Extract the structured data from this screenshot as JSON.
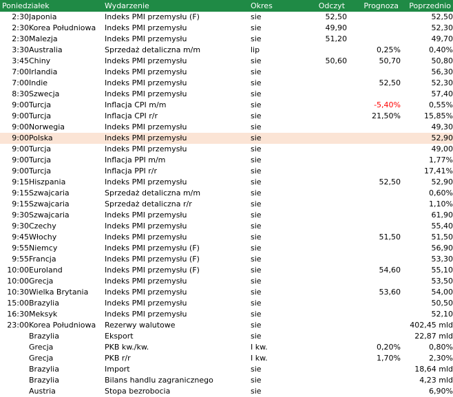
{
  "headers": {
    "day": "Poniedziałek",
    "event": "Wydarzenie",
    "period": "Okres",
    "actual": "Odczyt",
    "forecast": "Prognoza",
    "previous": "Poprzednio"
  },
  "rows": [
    {
      "time": "2:30",
      "country": "Japonia",
      "event": "Indeks PMI przemysłu (F)",
      "period": "sie",
      "actual": "52,50",
      "forecast": "",
      "previous": "52,50"
    },
    {
      "time": "2:30",
      "country": "Korea Południowa",
      "event": "Indeks PMI przemysłu",
      "period": "sie",
      "actual": "49,90",
      "forecast": "",
      "previous": "52,30"
    },
    {
      "time": "2:30",
      "country": "Malezja",
      "event": "Indeks PMI przemysłu",
      "period": "sie",
      "actual": "51,20",
      "forecast": "",
      "previous": "49,70"
    },
    {
      "time": "3:30",
      "country": "Australia",
      "event": "Sprzedaż detaliczna m/m",
      "period": "lip",
      "actual": "",
      "forecast": "0,25%",
      "previous": "0,40%"
    },
    {
      "time": "3:45",
      "country": "Chiny",
      "event": "Indeks PMI przemysłu",
      "period": "sie",
      "actual": "50,60",
      "forecast": "50,70",
      "previous": "50,80"
    },
    {
      "time": "7:00",
      "country": "Irlandia",
      "event": "Indeks PMI przemysłu",
      "period": "sie",
      "actual": "",
      "forecast": "",
      "previous": "56,30"
    },
    {
      "time": "7:00",
      "country": "Indie",
      "event": "Indeks PMI przemysłu",
      "period": "sie",
      "actual": "",
      "forecast": "52,50",
      "previous": "52,30"
    },
    {
      "time": "8:30",
      "country": "Szwecja",
      "event": "Indeks PMI przemysłu",
      "period": "sie",
      "actual": "",
      "forecast": "",
      "previous": "57,40"
    },
    {
      "time": "9:00",
      "country": "Turcja",
      "event": "Inflacja CPI m/m",
      "period": "sie",
      "actual": "",
      "forecast": "-5,40%",
      "previous": "0,55%",
      "neg": true
    },
    {
      "time": "9:00",
      "country": "Turcja",
      "event": "Inflacja CPI r/r",
      "period": "sie",
      "actual": "",
      "forecast": "21,50%",
      "previous": "15,85%"
    },
    {
      "time": "9:00",
      "country": "Norwegia",
      "event": "Indeks PMI przemysłu",
      "period": "sie",
      "actual": "",
      "forecast": "",
      "previous": "49,30"
    },
    {
      "time": "9:00",
      "country": "Polska",
      "event": "Indeks PMI przemysłu",
      "period": "sie",
      "actual": "",
      "forecast": "",
      "previous": "52,90",
      "highlight": true
    },
    {
      "time": "9:00",
      "country": "Turcja",
      "event": "Indeks PMI przemysłu",
      "period": "sie",
      "actual": "",
      "forecast": "",
      "previous": "49,00"
    },
    {
      "time": "9:00",
      "country": "Turcja",
      "event": "Inflacja PPI m/m",
      "period": "sie",
      "actual": "",
      "forecast": "",
      "previous": "1,77%"
    },
    {
      "time": "9:00",
      "country": "Turcja",
      "event": "Inflacja PPI r/r",
      "period": "sie",
      "actual": "",
      "forecast": "",
      "previous": "17,41%"
    },
    {
      "time": "9:15",
      "country": "Hiszpania",
      "event": "Indeks PMI przemysłu",
      "period": "sie",
      "actual": "",
      "forecast": "52,50",
      "previous": "52,90"
    },
    {
      "time": "9:15",
      "country": "Szwajcaria",
      "event": "Sprzedaż detaliczna m/m",
      "period": "sie",
      "actual": "",
      "forecast": "",
      "previous": "0,60%"
    },
    {
      "time": "9:15",
      "country": "Szwajcaria",
      "event": "Sprzedaż detaliczna r/r",
      "period": "sie",
      "actual": "",
      "forecast": "",
      "previous": "1,10%"
    },
    {
      "time": "9:30",
      "country": "Szwajcaria",
      "event": "Indeks PMI przemysłu",
      "period": "sie",
      "actual": "",
      "forecast": "",
      "previous": "61,90"
    },
    {
      "time": "9:30",
      "country": "Czechy",
      "event": "Indeks PMI przemysłu",
      "period": "sie",
      "actual": "",
      "forecast": "",
      "previous": "55,40"
    },
    {
      "time": "9:45",
      "country": "Włochy",
      "event": "Indeks PMI przemysłu",
      "period": "sie",
      "actual": "",
      "forecast": "51,50",
      "previous": "51,50"
    },
    {
      "time": "9:55",
      "country": "Niemcy",
      "event": "Indeks PMI przemysłu (F)",
      "period": "sie",
      "actual": "",
      "forecast": "",
      "previous": "56,90"
    },
    {
      "time": "9:55",
      "country": "Francja",
      "event": "Indeks PMI przemysłu (F)",
      "period": "sie",
      "actual": "",
      "forecast": "",
      "previous": "53,30"
    },
    {
      "time": "10:00",
      "country": "Euroland",
      "event": "Indeks PMI przemysłu (F)",
      "period": "sie",
      "actual": "",
      "forecast": "54,60",
      "previous": "55,10"
    },
    {
      "time": "10:00",
      "country": "Grecja",
      "event": "Indeks PMI przemysłu",
      "period": "sie",
      "actual": "",
      "forecast": "",
      "previous": "53,50"
    },
    {
      "time": "10:30",
      "country": "Wielka Brytania",
      "event": "Indeks PMI przemysłu",
      "period": "sie",
      "actual": "",
      "forecast": "53,60",
      "previous": "54,00"
    },
    {
      "time": "15:00",
      "country": "Brazylia",
      "event": "Indeks PMI przemysłu",
      "period": "sie",
      "actual": "",
      "forecast": "",
      "previous": "50,50"
    },
    {
      "time": "16:30",
      "country": "Meksyk",
      "event": "Indeks PMI przemysłu",
      "period": "sie",
      "actual": "",
      "forecast": "",
      "previous": "52,10"
    },
    {
      "time": "23:00",
      "country": "Korea Południowa",
      "event": "Rezerwy walutowe",
      "period": "sie",
      "actual": "",
      "forecast": "",
      "previous": "402,45 mld"
    },
    {
      "time": "",
      "country": "Brazylia",
      "event": "Eksport",
      "period": "sie",
      "actual": "",
      "forecast": "",
      "previous": "22,87 mld"
    },
    {
      "time": "",
      "country": "Grecja",
      "event": "PKB kw./kw.",
      "period": "I kw.",
      "actual": "",
      "forecast": "0,20%",
      "previous": "0,80%"
    },
    {
      "time": "",
      "country": "Grecja",
      "event": "PKB r/r",
      "period": "I kw.",
      "actual": "",
      "forecast": "1,70%",
      "previous": "2,30%"
    },
    {
      "time": "",
      "country": "Brazylia",
      "event": "Import",
      "period": "sie",
      "actual": "",
      "forecast": "",
      "previous": "18,64 mld"
    },
    {
      "time": "",
      "country": "Brazylia",
      "event": "Bilans handlu zagranicznego",
      "period": "sie",
      "actual": "",
      "forecast": "",
      "previous": "4,23 mld"
    },
    {
      "time": "",
      "country": "Austria",
      "event": "Stopa bezrobocia",
      "period": "sie",
      "actual": "",
      "forecast": "",
      "previous": "6,90%"
    }
  ],
  "colors": {
    "header_bg": "#1f8a45",
    "highlight_bg": "#fbe4d5",
    "negative": "#ff0000"
  }
}
